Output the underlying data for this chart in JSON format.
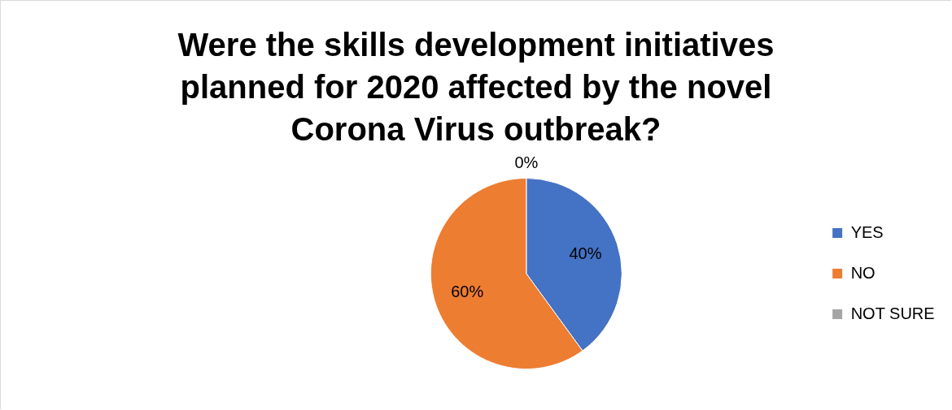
{
  "chart_data": {
    "type": "pie",
    "title": "Were the skills development initiatives planned for 2020 affected by the novel Corona Virus outbreak?",
    "categories": [
      "YES",
      "NO",
      "NOT SURE"
    ],
    "values": [
      40,
      60,
      0
    ],
    "colors": [
      "#4472c4",
      "#ed7d31",
      "#a5a5a5"
    ],
    "value_labels": [
      "40%",
      "60%",
      "0%"
    ],
    "legend": "right"
  }
}
